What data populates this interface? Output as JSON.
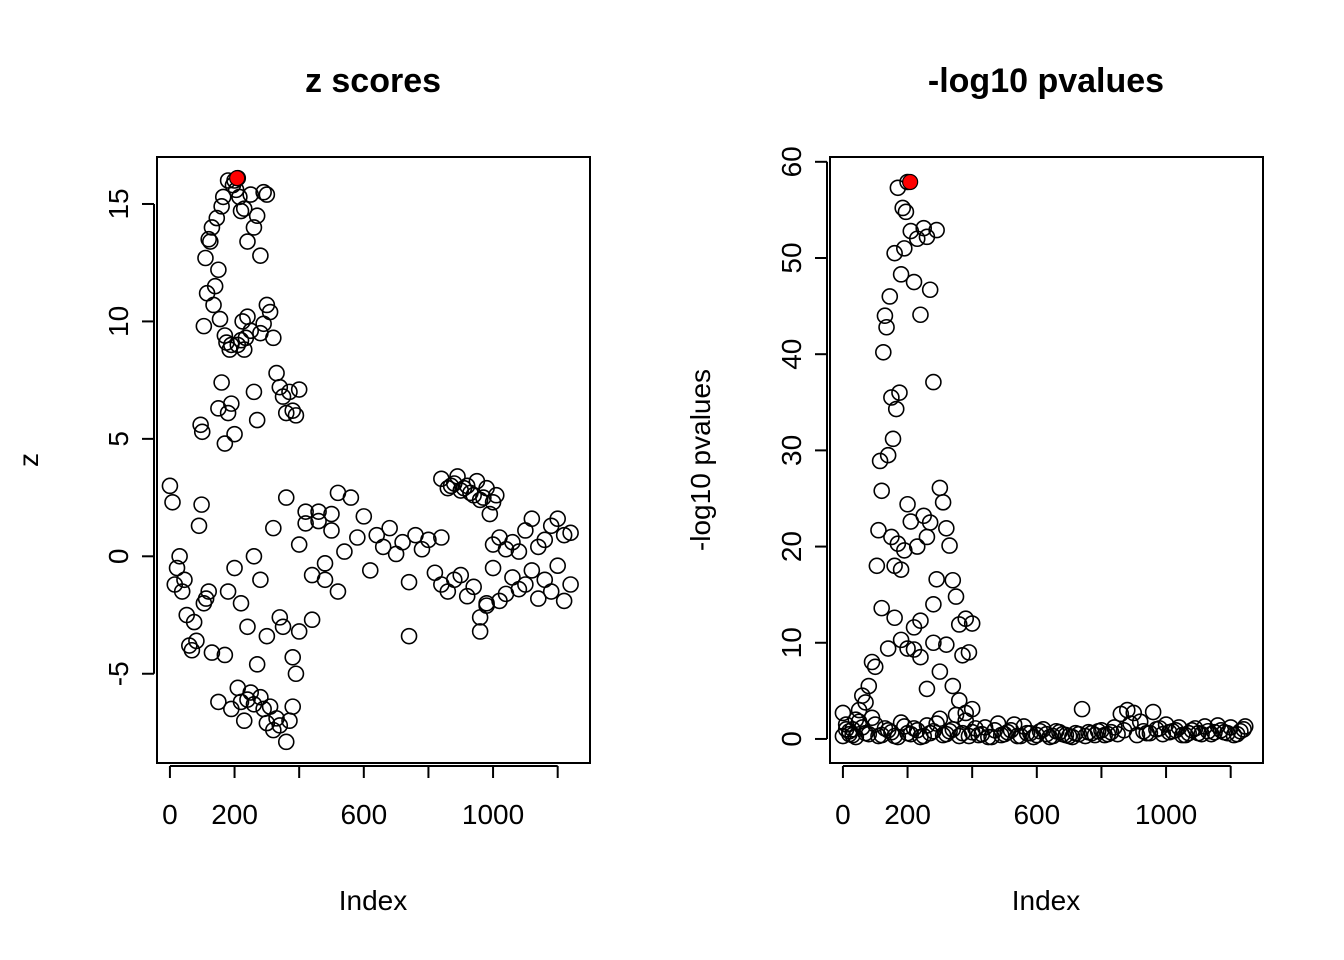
{
  "colors": {
    "background": "#ffffff",
    "points": "#000000",
    "highlight": "#ff0000"
  },
  "chart_data": [
    {
      "type": "scatter",
      "title": "z scores",
      "xlabel": "Index",
      "ylabel": "z",
      "xlim": [
        -40,
        1300
      ],
      "ylim": [
        -8.8,
        17
      ],
      "xticks": [
        0,
        200,
        400,
        600,
        800,
        1000,
        1200
      ],
      "xtick_labels": [
        "0",
        "200",
        "",
        "600",
        "",
        "1000",
        ""
      ],
      "yticks": [
        -5,
        0,
        5,
        10,
        15
      ],
      "ytick_labels": [
        "-5",
        "0",
        "5",
        "10",
        "15"
      ],
      "highlight": {
        "x": 208,
        "y": 16.1,
        "color": "#ff0000"
      },
      "shape": "open-circle",
      "series": [
        {
          "x": [
            0,
            8,
            15,
            22,
            30,
            38,
            45,
            52,
            60,
            68,
            75,
            82,
            90,
            98,
            105,
            112,
            120
          ],
          "y": [
            3.0,
            2.3,
            -1.2,
            -0.5,
            0.0,
            -1.5,
            -1.0,
            -2.5,
            -3.8,
            -4.0,
            -2.8,
            -3.6,
            1.3,
            2.2,
            -2.0,
            -1.8,
            -1.5
          ]
        },
        {
          "x": [
            95,
            100,
            105,
            110,
            115,
            120,
            125,
            130,
            135,
            140,
            145,
            150,
            155,
            160,
            165,
            170,
            175,
            180,
            185,
            190,
            195,
            200,
            205,
            210,
            215,
            220,
            225,
            230,
            235,
            240,
            250,
            260,
            270,
            280,
            290,
            300
          ],
          "y": [
            5.6,
            5.3,
            9.8,
            12.7,
            11.2,
            13.5,
            13.4,
            14.0,
            10.7,
            11.5,
            14.4,
            12.2,
            10.1,
            14.9,
            15.3,
            9.4,
            9.1,
            16.0,
            8.8,
            9.0,
            15.8,
            16.0,
            15.6,
            16.1,
            15.3,
            14.7,
            10.0,
            14.8,
            9.3,
            13.4,
            15.4,
            14.0,
            14.5,
            12.8,
            15.5,
            15.4
          ]
        },
        {
          "x": [
            150,
            160,
            170,
            180,
            190,
            200,
            210,
            220,
            230,
            240,
            250,
            260,
            270,
            280,
            290,
            300,
            310,
            320,
            330,
            340,
            350,
            360,
            370,
            380,
            390,
            400
          ],
          "y": [
            6.3,
            7.4,
            4.8,
            6.1,
            6.5,
            5.2,
            9.0,
            9.2,
            8.8,
            10.2,
            9.6,
            7.0,
            5.8,
            9.5,
            9.9,
            10.7,
            10.4,
            9.3,
            7.8,
            7.2,
            6.8,
            6.1,
            7.0,
            6.2,
            6.0,
            7.1
          ]
        },
        {
          "x": [
            130,
            150,
            170,
            190,
            210,
            220,
            230,
            240,
            250,
            260,
            270,
            280,
            290,
            300,
            310,
            320,
            330,
            340,
            350,
            360,
            370,
            380,
            390
          ],
          "y": [
            -4.1,
            -6.2,
            -4.2,
            -6.5,
            -5.6,
            -6.2,
            -7.0,
            -6.1,
            -5.8,
            -6.3,
            -4.6,
            -6.0,
            -6.5,
            -7.1,
            -6.4,
            -7.4,
            -6.9,
            -7.2,
            -3.0,
            -7.9,
            -7.0,
            -6.4,
            -5.0
          ]
        },
        {
          "x": [
            180,
            200,
            220,
            240,
            260,
            280,
            300,
            320,
            340,
            360,
            380,
            400,
            420,
            440,
            460,
            480,
            500,
            520
          ],
          "y": [
            -1.5,
            -0.5,
            -2.0,
            -3.0,
            0.0,
            -1.0,
            -3.4,
            1.2,
            -2.6,
            2.5,
            -4.3,
            -3.2,
            1.9,
            -2.7,
            1.5,
            -1.0,
            1.8,
            2.7
          ]
        },
        {
          "x": [
            400,
            420,
            440,
            460,
            480,
            500,
            520,
            540,
            560,
            580,
            600,
            620,
            640,
            660,
            680,
            700,
            720,
            740,
            760,
            780,
            800,
            820,
            840
          ],
          "y": [
            0.5,
            1.4,
            -0.8,
            1.9,
            -0.3,
            1.1,
            -1.5,
            0.2,
            2.5,
            0.8,
            1.7,
            -0.6,
            0.9,
            0.4,
            1.2,
            0.1,
            0.6,
            -1.1,
            0.9,
            0.3,
            0.7,
            -0.7,
            0.8
          ]
        },
        {
          "x": [
            740
          ],
          "y": [
            -3.4
          ]
        },
        {
          "x": [
            840,
            860,
            870,
            880,
            890,
            900,
            910,
            920,
            930,
            940,
            950,
            960,
            970,
            980,
            990,
            1000,
            1010
          ],
          "y": [
            3.3,
            2.9,
            3.0,
            3.1,
            3.4,
            2.8,
            2.9,
            3.0,
            2.7,
            2.6,
            3.2,
            2.4,
            2.5,
            2.9,
            1.8,
            2.3,
            2.6
          ]
        },
        {
          "x": [
            840,
            860,
            880,
            900,
            920,
            940,
            960,
            980,
            1000,
            1020,
            1040,
            1060,
            1080,
            1100,
            1120,
            1140,
            1160,
            1180,
            1200,
            1220,
            1240
          ],
          "y": [
            -1.2,
            -1.5,
            -1.0,
            -0.8,
            -1.7,
            -1.3,
            -2.6,
            -2.1,
            -0.5,
            -1.9,
            -1.6,
            -0.9,
            -1.4,
            -1.2,
            -0.6,
            -1.8,
            -1.0,
            -1.5,
            -0.4,
            -1.9,
            -1.2
          ]
        },
        {
          "x": [
            960,
            980,
            1000,
            1020,
            1040,
            1060,
            1080,
            1100,
            1120,
            1140,
            1160,
            1180,
            1200,
            1220,
            1240
          ],
          "y": [
            -3.2,
            -2.0,
            0.5,
            0.8,
            0.3,
            0.6,
            0.2,
            1.1,
            1.6,
            0.4,
            0.7,
            1.3,
            1.6,
            0.9,
            1.0
          ]
        }
      ]
    },
    {
      "type": "scatter",
      "title": "-log10 pvalues",
      "xlabel": "Index",
      "ylabel": "-log10 pvalues",
      "xlim": [
        -40,
        1300
      ],
      "ylim": [
        -2.5,
        60.5
      ],
      "xticks": [
        0,
        200,
        400,
        600,
        800,
        1000,
        1200
      ],
      "xtick_labels": [
        "0",
        "200",
        "",
        "600",
        "",
        "1000",
        ""
      ],
      "yticks": [
        0,
        10,
        20,
        30,
        40,
        50,
        60
      ],
      "ytick_labels": [
        "0",
        "10",
        "20",
        "30",
        "40",
        "50",
        "60"
      ],
      "highlight": {
        "x": 208,
        "y": 57.9,
        "color": "#ff0000"
      },
      "shape": "open-circle",
      "series": [
        {
          "x": [
            0,
            10,
            20,
            30,
            40,
            50,
            60,
            70,
            80,
            90,
            100,
            105,
            110,
            115,
            120,
            125,
            130,
            135,
            140,
            145,
            150,
            155,
            160,
            165,
            170,
            175,
            180,
            185,
            190,
            195,
            200,
            210,
            220,
            230,
            240,
            250,
            260,
            270,
            280,
            290
          ],
          "y": [
            2.7,
            1.5,
            0.5,
            1.0,
            2.0,
            3.0,
            4.5,
            3.8,
            5.5,
            8.0,
            7.5,
            18.0,
            21.7,
            28.9,
            25.8,
            40.2,
            44.0,
            42.8,
            29.5,
            46.0,
            35.5,
            31.2,
            50.5,
            34.3,
            57.3,
            36.0,
            48.3,
            55.2,
            51.0,
            54.8,
            57.9,
            52.8,
            47.5,
            52.0,
            44.1,
            53.1,
            52.2,
            46.7,
            37.1,
            52.9
          ]
        },
        {
          "x": [
            150,
            160,
            170,
            180,
            190,
            200,
            210,
            220,
            230,
            240,
            250,
            260,
            270,
            280,
            290,
            300,
            310,
            320,
            330,
            340,
            350,
            360,
            370,
            380,
            390,
            400
          ],
          "y": [
            21.0,
            18.0,
            20.3,
            17.6,
            19.6,
            24.4,
            22.6,
            9.3,
            20.0,
            12.3,
            23.2,
            21.0,
            22.5,
            14.0,
            16.6,
            26.1,
            24.6,
            21.9,
            20.1,
            16.5,
            14.8,
            11.9,
            8.7,
            12.5,
            9.0,
            12.0
          ]
        },
        {
          "x": [
            120,
            140,
            160,
            180,
            200,
            220,
            240,
            260,
            280,
            300,
            320,
            340,
            360,
            380,
            400
          ],
          "y": [
            13.6,
            9.4,
            12.6,
            10.3,
            9.4,
            11.6,
            8.5,
            5.2,
            10.0,
            7.0,
            9.8,
            5.5,
            4.0,
            2.7,
            3.1
          ]
        },
        {
          "x": [
            0,
            20,
            40,
            60,
            80,
            100,
            120,
            140,
            160,
            180,
            200,
            220,
            240,
            260,
            280,
            300,
            320,
            340,
            360,
            380,
            400,
            420,
            440,
            460,
            480,
            500,
            520,
            540,
            560,
            580,
            600,
            620,
            640,
            660,
            680,
            700,
            720,
            740,
            760,
            780,
            800,
            820,
            840,
            860,
            880,
            900,
            920,
            940,
            960,
            980,
            1000,
            1020,
            1040,
            1060,
            1080,
            1100,
            1120,
            1140,
            1160,
            1180,
            1200,
            1220,
            1240
          ],
          "y": [
            0.3,
            0.8,
            0.2,
            1.2,
            0.5,
            1.5,
            0.4,
            0.9,
            0.3,
            1.7,
            0.6,
            1.1,
            0.2,
            1.4,
            0.8,
            2.1,
            0.5,
            1.0,
            0.3,
            1.9,
            0.7,
            0.4,
            1.2,
            0.2,
            1.6,
            0.5,
            0.9,
            0.3,
            1.3,
            0.6,
            0.4,
            1.0,
            0.2,
            0.8,
            0.5,
            0.3,
            0.6,
            3.1,
            0.7,
            0.4,
            0.9,
            0.5,
            1.2,
            2.6,
            3.0,
            2.7,
            1.8,
            0.6,
            2.8,
            1.1,
            1.5,
            0.8,
            1.2,
            0.4,
            0.9,
            0.6,
            1.3,
            0.5,
            1.4,
            0.7,
            1.2,
            0.5,
            1.0
          ]
        },
        {
          "x": [
            10,
            30,
            50,
            70,
            90,
            110,
            130,
            150,
            170,
            190,
            210,
            230,
            250,
            270,
            290,
            310,
            330,
            350,
            370,
            390,
            410,
            430,
            450,
            470,
            490,
            510,
            530,
            550,
            570,
            590,
            610,
            630,
            650,
            670,
            690,
            710,
            730,
            750,
            770,
            790,
            810,
            830,
            850,
            870,
            890,
            910,
            930,
            950,
            970,
            990,
            1010,
            1030,
            1050,
            1070,
            1090,
            1110,
            1130,
            1150,
            1170,
            1190,
            1210,
            1230,
            1245
          ],
          "y": [
            1.0,
            0.4,
            1.8,
            0.6,
            2.2,
            0.3,
            1.1,
            0.7,
            0.2,
            1.3,
            0.5,
            0.9,
            0.3,
            0.6,
            1.6,
            0.4,
            0.8,
            2.5,
            0.6,
            0.3,
            1.1,
            0.5,
            0.2,
            0.9,
            0.4,
            0.7,
            1.5,
            0.3,
            0.6,
            0.2,
            0.8,
            0.5,
            0.3,
            0.7,
            0.4,
            0.2,
            0.5,
            0.3,
            0.6,
            0.8,
            0.4,
            0.7,
            0.5,
            0.9,
            1.6,
            0.4,
            0.8,
            0.6,
            1.0,
            0.5,
            0.7,
            0.9,
            0.4,
            0.6,
            1.1,
            0.5,
            0.8,
            0.7,
            0.9,
            0.6,
            0.4,
            0.8,
            1.3
          ]
        }
      ]
    }
  ]
}
